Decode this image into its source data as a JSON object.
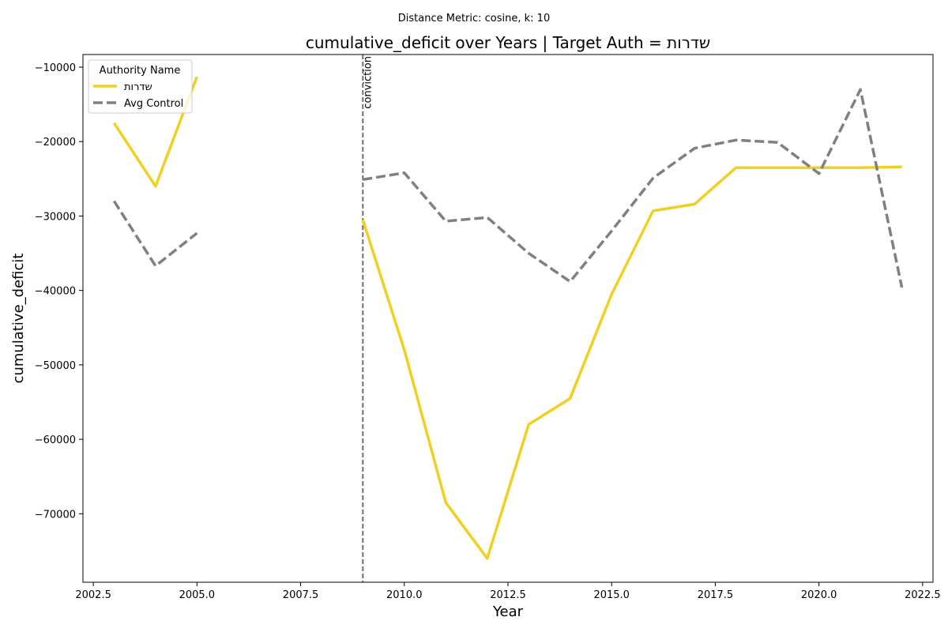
{
  "chart_data": {
    "type": "line",
    "suptitle": "Distance Metric: cosine, k: 10",
    "title": "cumulative_deficit over Years | Target Auth = שדרות",
    "xlabel": "Year",
    "ylabel": "cumulative_deficit",
    "xlim": [
      2002.25,
      2022.75
    ],
    "ylim": [
      -79200,
      -8300
    ],
    "xticks": [
      2002.5,
      2005.0,
      2007.5,
      2010.0,
      2012.5,
      2015.0,
      2017.5,
      2020.0,
      2022.5
    ],
    "xtick_labels": [
      "2002.5",
      "2005.0",
      "2007.5",
      "2010.0",
      "2012.5",
      "2015.0",
      "2017.5",
      "2020.0",
      "2022.5"
    ],
    "yticks": [
      -10000,
      -20000,
      -30000,
      -40000,
      -50000,
      -60000,
      -70000
    ],
    "ytick_labels": [
      "−10000",
      "−20000",
      "−30000",
      "−40000",
      "−50000",
      "−60000",
      "−70000"
    ],
    "grid": false,
    "legend": {
      "title": "Authority Name",
      "placement": "top-left"
    },
    "series": [
      {
        "name": "שדרות",
        "color": "#f0d020",
        "dash": "solid",
        "points": [
          [
            2003,
            -17500
          ],
          [
            2004,
            -26000
          ],
          [
            2005,
            -11300
          ],
          [
            2009,
            -30500
          ],
          [
            2010,
            -48000
          ],
          [
            2011,
            -68500
          ],
          [
            2012,
            -76000
          ],
          [
            2013,
            -58000
          ],
          [
            2014,
            -54500
          ],
          [
            2015,
            -40500
          ],
          [
            2016,
            -29300
          ],
          [
            2017,
            -28400
          ],
          [
            2018,
            -23500
          ],
          [
            2019,
            -23500
          ],
          [
            2020,
            -23500
          ],
          [
            2021,
            -23500
          ],
          [
            2022,
            -23400
          ]
        ]
      },
      {
        "name": "Avg Control",
        "color": "#808080",
        "dash": "dashed",
        "points": [
          [
            2003,
            -28000
          ],
          [
            2004,
            -36700
          ],
          [
            2005,
            -32300
          ],
          [
            2009,
            -25100
          ],
          [
            2010,
            -24200
          ],
          [
            2011,
            -30700
          ],
          [
            2012,
            -30200
          ],
          [
            2013,
            -35000
          ],
          [
            2014,
            -38800
          ],
          [
            2015,
            -32000
          ],
          [
            2016,
            -24900
          ],
          [
            2017,
            -20900
          ],
          [
            2018,
            -19800
          ],
          [
            2019,
            -20100
          ],
          [
            2020,
            -24300
          ],
          [
            2021,
            -13000
          ],
          [
            2022,
            -39600
          ]
        ]
      }
    ],
    "annotations": [
      {
        "type": "vline",
        "x": 2009,
        "label": "conviction",
        "color": "#707070"
      }
    ]
  }
}
